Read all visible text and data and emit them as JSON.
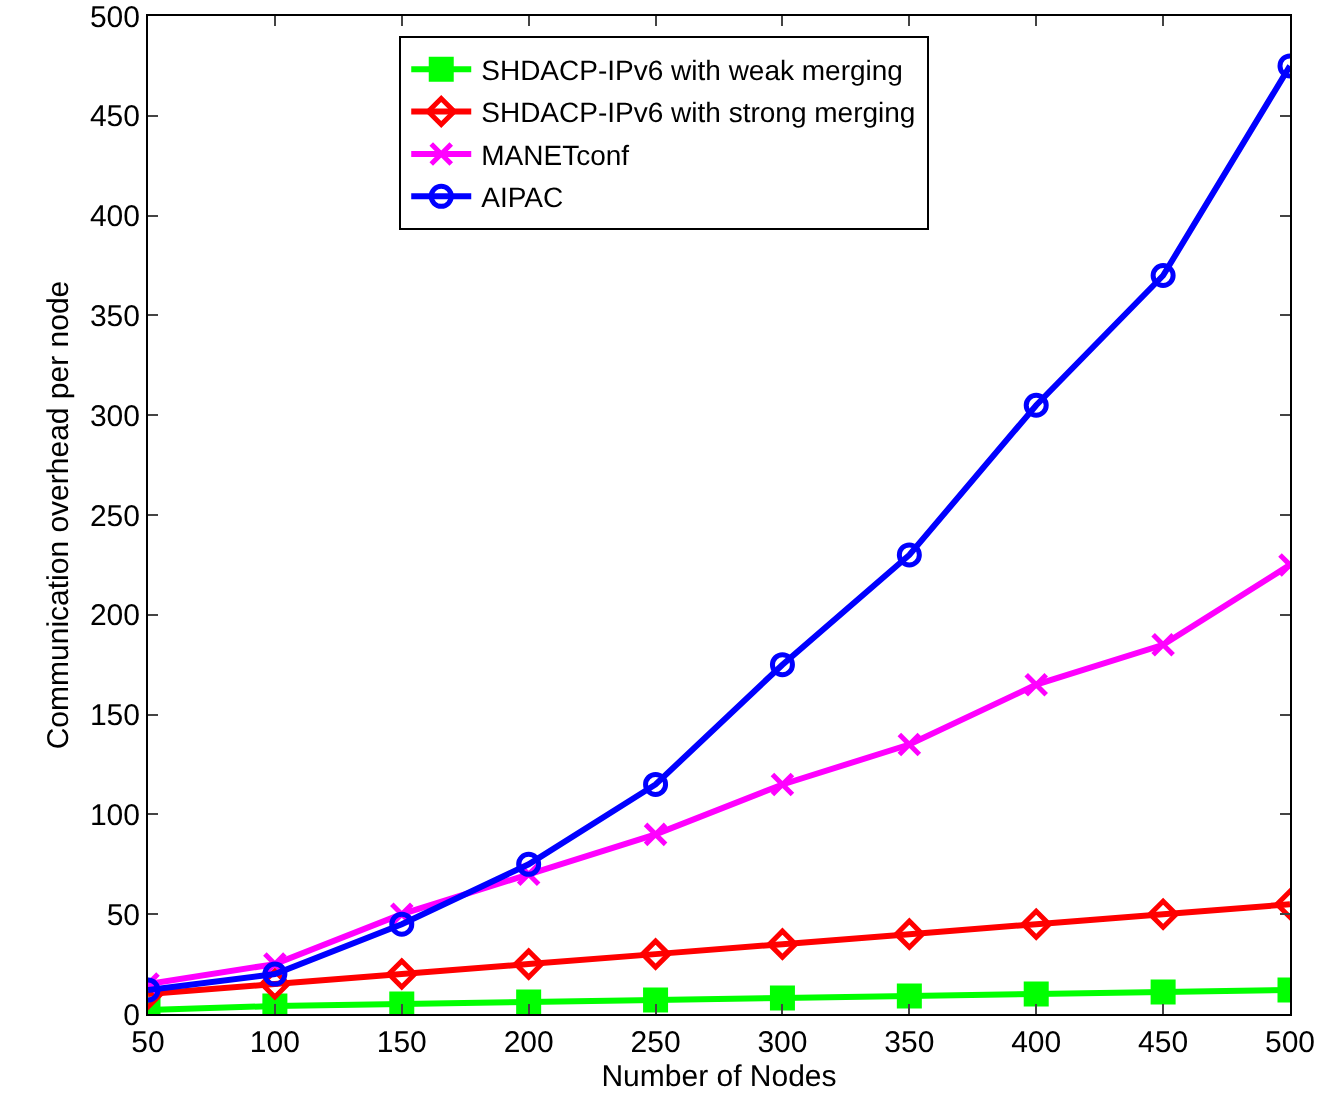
{
  "chart_data": {
    "type": "line",
    "xlabel": "Number of Nodes",
    "ylabel": "Communication overhead per node",
    "x": [
      50,
      100,
      150,
      200,
      250,
      300,
      350,
      400,
      450,
      500
    ],
    "xlim": [
      50,
      500
    ],
    "xticks": [
      50,
      100,
      150,
      200,
      250,
      300,
      350,
      400,
      450,
      500
    ],
    "ylim": [
      0,
      500
    ],
    "yticks": [
      0,
      50,
      100,
      150,
      200,
      250,
      300,
      350,
      400,
      450,
      500
    ],
    "grid": false,
    "legend": "top left",
    "line_style": "solid",
    "series": [
      {
        "name": "SHDACP-IPv6 with weak merging",
        "color": "#00ff00",
        "marker": "square",
        "values": [
          2,
          4,
          5,
          6,
          7,
          8,
          9,
          10,
          11,
          12
        ]
      },
      {
        "name": "SHDACP-IPv6 with strong merging",
        "color": "#ff0000",
        "marker": "diamond",
        "values": [
          10,
          15,
          20,
          25,
          30,
          35,
          40,
          45,
          50,
          55
        ]
      },
      {
        "name": "MANETconf",
        "color": "#ff00ff",
        "marker": "cross",
        "values": [
          15,
          25,
          50,
          70,
          90,
          115,
          135,
          165,
          185,
          225
        ]
      },
      {
        "name": "AIPAC",
        "color": "#0000ff",
        "marker": "circle",
        "values": [
          12,
          20,
          45,
          75,
          115,
          175,
          230,
          305,
          370,
          475
        ]
      }
    ]
  }
}
